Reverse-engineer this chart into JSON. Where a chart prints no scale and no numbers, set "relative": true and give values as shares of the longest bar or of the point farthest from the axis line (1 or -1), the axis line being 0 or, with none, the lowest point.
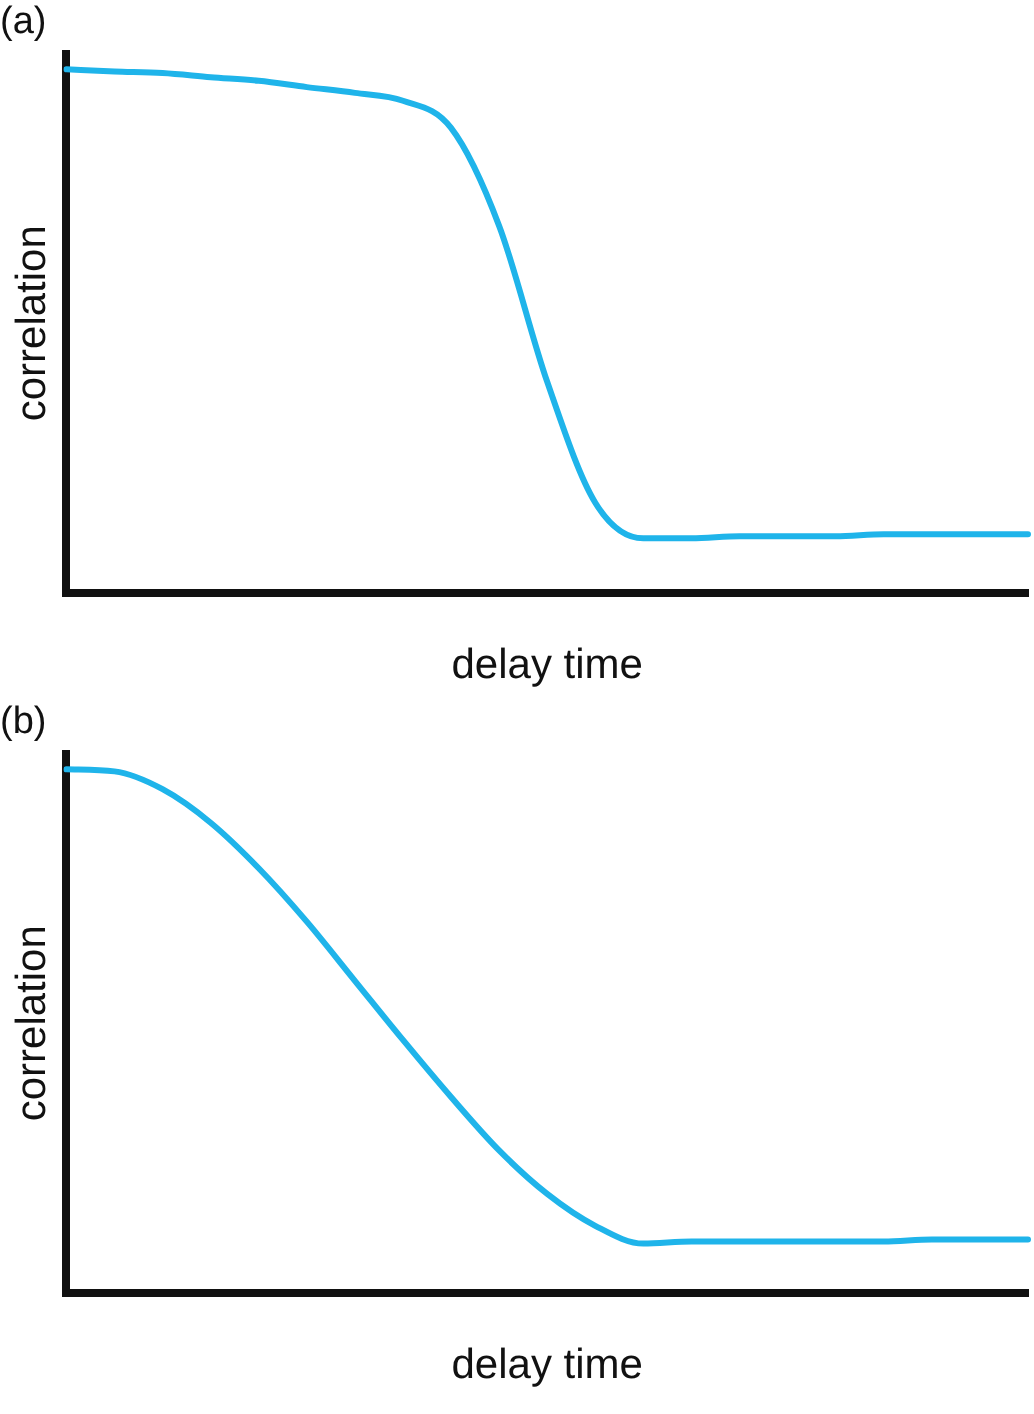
{
  "chart_data": [
    {
      "type": "line",
      "title": "(a)",
      "xlabel": "delay time",
      "ylabel": "correlation",
      "relative": true,
      "marker": "none",
      "legend": false,
      "categories": [
        null,
        null,
        null,
        null,
        null,
        null,
        null,
        null,
        null,
        null,
        null,
        null,
        null,
        null,
        null,
        null,
        null,
        null,
        null,
        null,
        null
      ],
      "series": [
        {
          "color": "#1fb4ea",
          "values": [
            1,
            0.996,
            0.993,
            0.985,
            0.978,
            0.966,
            0.955,
            0.94,
            0.888,
            0.701,
            0.403,
            0.172,
            0.104,
            0.104,
            0.108,
            0.108,
            0.108,
            0.112,
            0.112,
            0.112,
            0.112
          ]
        }
      ]
    },
    {
      "type": "line",
      "title": "(b)",
      "xlabel": "delay time",
      "ylabel": "correlation",
      "relative": true,
      "marker": "none",
      "legend": false,
      "categories": [
        null,
        null,
        null,
        null,
        null,
        null,
        null,
        null,
        null,
        null,
        null,
        null,
        null,
        null,
        null,
        null,
        null,
        null,
        null,
        null,
        null
      ],
      "series": [
        {
          "color": "#1fb4ea",
          "values": [
            1,
            0.996,
            0.962,
            0.898,
            0.811,
            0.709,
            0.596,
            0.483,
            0.374,
            0.272,
            0.189,
            0.128,
            0.094,
            0.098,
            0.098,
            0.098,
            0.098,
            0.098,
            0.102,
            0.102,
            0.102
          ]
        }
      ]
    }
  ]
}
